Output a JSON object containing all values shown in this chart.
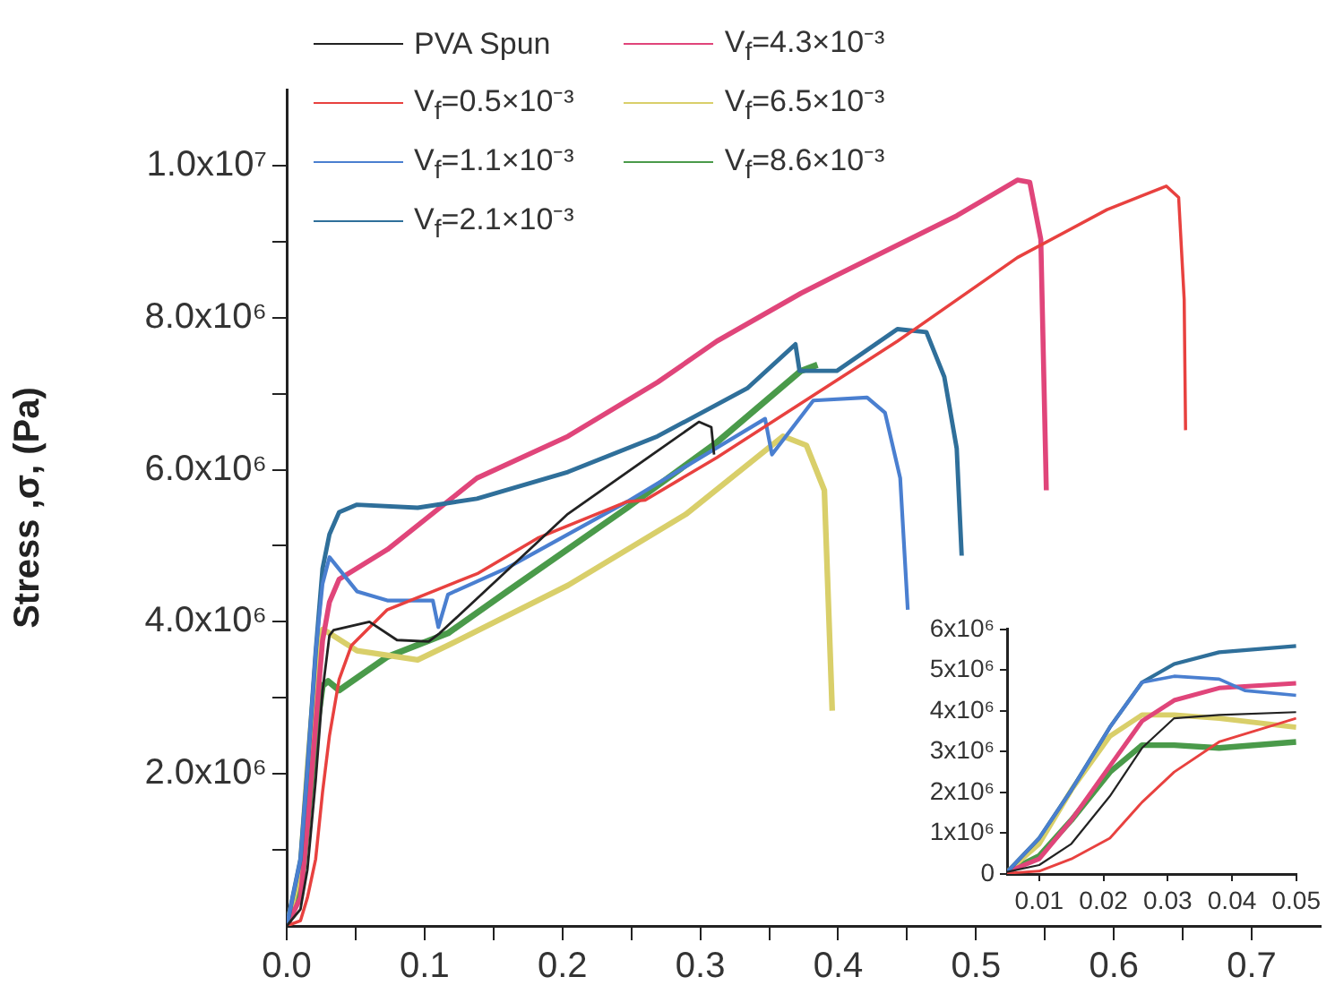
{
  "chart_data": [
    {
      "type": "line",
      "ylabel": "Stress ,σ, (Pa)",
      "xlim": [
        0,
        0.75
      ],
      "ylim": [
        0,
        11000000.0
      ],
      "grid": false,
      "legend": "top left",
      "marker": "none",
      "xticks": [
        {
          "value": 0,
          "label": "0.0"
        },
        {
          "value": 0.05,
          "label": null
        },
        0.1,
        {
          "value": 0.15,
          "label": null
        },
        0.2,
        {
          "value": 0.25,
          "label": null
        },
        0.3,
        {
          "value": 0.35,
          "label": null
        },
        0.4,
        {
          "value": 0.45,
          "label": null
        },
        0.5,
        {
          "value": 0.55,
          "label": null
        },
        0.6,
        {
          "value": 0.65,
          "label": null
        },
        0.7
      ],
      "yticks": [
        {
          "value": 1000000.0,
          "label": null
        },
        {
          "value": 2000000.0,
          "label": "2.0x10⁶"
        },
        {
          "value": 3000000.0,
          "label": null
        },
        {
          "value": 4000000.0,
          "label": "4.0x10⁶"
        },
        {
          "value": 5000000.0,
          "label": null
        },
        {
          "value": 6000000.0,
          "label": "6.0x10⁶"
        },
        {
          "value": 7000000.0,
          "label": null
        },
        {
          "value": 8000000.0,
          "label": "8.0x10⁶"
        },
        {
          "value": 9000000.0,
          "label": null
        },
        {
          "value": 10000000.0,
          "label": "1.0x10⁷"
        }
      ],
      "series": [
        {
          "name": "PVA Spun",
          "color": "#222222",
          "x": [
            0,
            0.01,
            0.015,
            0.021,
            0.026,
            0.031,
            0.034,
            0.06,
            0.08,
            0.103,
            0.111,
            0.204,
            0.299,
            0.308,
            0.31
          ],
          "values": [
            0,
            220000.0,
            740000.0,
            1910000.0,
            3090000.0,
            3820000.0,
            3890000.0,
            4000000.0,
            3760000.0,
            3740000.0,
            3850000.0,
            5420000.0,
            6630000.0,
            6560000.0,
            6200000.0
          ]
        },
        {
          "name": "V$_{f}$=0.5×10⁻³",
          "color": "#e8413f",
          "x": [
            0,
            0.01,
            0.015,
            0.021,
            0.026,
            0.031,
            0.038,
            0.047,
            0.073,
            0.139,
            0.182,
            0.247,
            0.26,
            0.312,
            0.377,
            0.443,
            0.53,
            0.595,
            0.638,
            0.647,
            0.651,
            0.652
          ],
          "values": [
            0,
            70000.0,
            370000.0,
            880000.0,
            1760000.0,
            2500000.0,
            3240000.0,
            3690000.0,
            4160000.0,
            4640000.0,
            5100000.0,
            5580000.0,
            5600000.0,
            6160000.0,
            6920000.0,
            7690000.0,
            8790000.0,
            9420000.0,
            9730000.0,
            9580000.0,
            8240000.0,
            6520000.0
          ]
        },
        {
          "name": "V$_{f}$=1.1×10⁻³",
          "color": "#4a7fd0",
          "x": [
            0,
            0.01,
            0.015,
            0.021,
            0.026,
            0.031,
            0.051,
            0.073,
            0.106,
            0.11,
            0.117,
            0.16,
            0.247,
            0.347,
            0.352,
            0.382,
            0.421,
            0.434,
            0.445,
            0.4505
          ],
          "values": [
            0,
            880000.0,
            2060000.0,
            3600000.0,
            4500000.0,
            4850000.0,
            4400000.0,
            4280000.0,
            4280000.0,
            3930000.0,
            4360000.0,
            4710000.0,
            5580000.0,
            6670000.0,
            6200000.0,
            6910000.0,
            6950000.0,
            6750000.0,
            5890000.0,
            4160000.0
          ]
        },
        {
          "name": "V$_{f}$=2.1×10⁻³",
          "color": "#2f6f9a",
          "x": [
            0,
            0.01,
            0.015,
            0.021,
            0.026,
            0.031,
            0.038,
            0.051,
            0.095,
            0.138,
            0.204,
            0.269,
            0.334,
            0.369,
            0.372,
            0.399,
            0.443,
            0.464,
            0.477,
            0.486,
            0.4896
          ],
          "values": [
            0,
            880000.0,
            2060000.0,
            3600000.0,
            4700000.0,
            5150000.0,
            5440000.0,
            5540000.0,
            5500000.0,
            5620000.0,
            5970000.0,
            6440000.0,
            7070000.0,
            7650000.0,
            7300000.0,
            7300000.0,
            7850000.0,
            7810000.0,
            7220000.0,
            6280000.0,
            4870000.0
          ]
        },
        {
          "name": "V$_{f}$=4.3×10⁻³",
          "color": "#e0457a",
          "x": [
            0,
            0.01,
            0.015,
            0.021,
            0.026,
            0.031,
            0.038,
            0.073,
            0.138,
            0.204,
            0.269,
            0.312,
            0.373,
            0.399,
            0.486,
            0.53,
            0.539,
            0.547,
            0.551
          ],
          "values": [
            0,
            370000.0,
            1320000.0,
            2650000.0,
            3750000.0,
            4260000.0,
            4560000.0,
            4950000.0,
            5890000.0,
            6440000.0,
            7150000.0,
            7690000.0,
            8320000.0,
            8560000.0,
            9340000.0,
            9810000.0,
            9780000.0,
            9030000.0,
            5730000.0
          ]
        },
        {
          "name": "V$_{f}$=6.5×10⁻³",
          "color": "#d9cf6a",
          "x": [
            0,
            0.01,
            0.015,
            0.021,
            0.026,
            0.031,
            0.051,
            0.095,
            0.117,
            0.204,
            0.29,
            0.36,
            0.377,
            0.39,
            0.3957
          ],
          "values": [
            0,
            740000.0,
            2060000.0,
            3380000.0,
            3900000.0,
            3850000.0,
            3620000.0,
            3500000.0,
            3690000.0,
            4480000.0,
            5420000.0,
            6440000.0,
            6320000.0,
            5730000.0,
            2830000.0
          ]
        },
        {
          "name": "V$_{f}$=8.6×10⁻³",
          "color": "#4a9a4a",
          "x": [
            0,
            0.01,
            0.015,
            0.021,
            0.026,
            0.03,
            0.038,
            0.073,
            0.117,
            0.16,
            0.247,
            0.312,
            0.373,
            0.385
          ],
          "values": [
            0,
            440000.0,
            1320000.0,
            2500000.0,
            3160000.0,
            3220000.0,
            3100000.0,
            3540000.0,
            3850000.0,
            4400000.0,
            5500000.0,
            6360000.0,
            7300000.0,
            7380000.0
          ]
        }
      ]
    },
    {
      "type": "line",
      "xlim": [
        0.005,
        0.05
      ],
      "ylim": [
        0,
        6000000.0
      ],
      "grid": false,
      "marker": "none",
      "xticks": [
        0.01,
        0.02,
        0.03,
        0.04,
        0.05
      ],
      "yticks": [
        {
          "value": 0,
          "label": "0"
        },
        {
          "value": 1000000.0,
          "label": "1x10⁶"
        },
        {
          "value": 2000000.0,
          "label": "2x10⁶"
        },
        {
          "value": 3000000.0,
          "label": "3x10⁶"
        },
        {
          "value": 4000000.0,
          "label": "4x10⁶"
        },
        {
          "value": 5000000.0,
          "label": "5x10⁶"
        },
        {
          "value": 6000000.0,
          "label": "6x10⁶"
        }
      ],
      "series": [
        {
          "color": "#222222",
          "x": [
            0.005,
            0.01,
            0.015,
            0.021,
            0.026,
            0.031,
            0.038,
            0.05
          ],
          "values": [
            50000.0,
            220000.0,
            740000.0,
            1910000.0,
            3090000.0,
            3820000.0,
            3900000.0,
            3970000.0
          ]
        },
        {
          "color": "#e8413f",
          "x": [
            0.005,
            0.01,
            0.015,
            0.021,
            0.026,
            0.031,
            0.038,
            0.05
          ],
          "values": [
            20000.0,
            70000.0,
            370000.0,
            880000.0,
            1760000.0,
            2500000.0,
            3240000.0,
            3820000.0
          ]
        },
        {
          "color": "#4a7fd0",
          "x": [
            0.005,
            0.01,
            0.015,
            0.021,
            0.026,
            0.031,
            0.038,
            0.042,
            0.05
          ],
          "values": [
            50000.0,
            880000.0,
            2060000.0,
            3600000.0,
            4700000.0,
            4850000.0,
            4780000.0,
            4500000.0,
            4380000.0
          ]
        },
        {
          "color": "#2f6f9a",
          "x": [
            0.005,
            0.01,
            0.015,
            0.021,
            0.026,
            0.031,
            0.038,
            0.05
          ],
          "values": [
            50000.0,
            880000.0,
            2060000.0,
            3600000.0,
            4700000.0,
            5150000.0,
            5440000.0,
            5590000.0
          ]
        },
        {
          "color": "#e0457a",
          "x": [
            0.005,
            0.01,
            0.015,
            0.021,
            0.026,
            0.031,
            0.038,
            0.05
          ],
          "values": [
            50000.0,
            370000.0,
            1320000.0,
            2650000.0,
            3750000.0,
            4260000.0,
            4560000.0,
            4680000.0
          ]
        },
        {
          "color": "#d9cf6a",
          "x": [
            0.005,
            0.01,
            0.015,
            0.021,
            0.026,
            0.031,
            0.038,
            0.05
          ],
          "values": [
            50000.0,
            740000.0,
            2060000.0,
            3380000.0,
            3900000.0,
            3900000.0,
            3820000.0,
            3600000.0
          ]
        },
        {
          "color": "#4a9a4a",
          "x": [
            0.005,
            0.01,
            0.015,
            0.021,
            0.026,
            0.031,
            0.038,
            0.05
          ],
          "values": [
            50000.0,
            440000.0,
            1320000.0,
            2500000.0,
            3160000.0,
            3160000.0,
            3090000.0,
            3240000.0
          ]
        }
      ]
    }
  ]
}
